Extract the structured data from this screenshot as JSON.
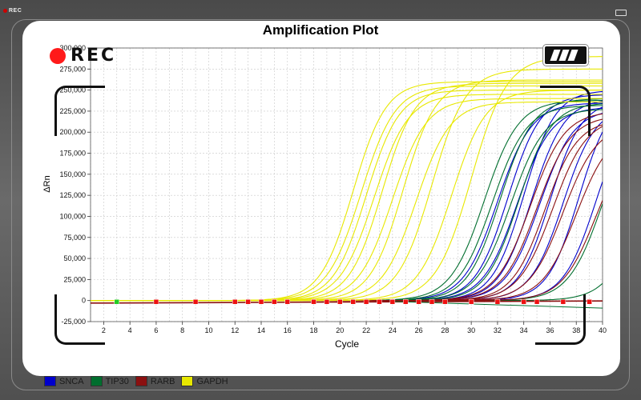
{
  "camera_overlay": {
    "rec_label": "REC",
    "corner_rec_label": "REC"
  },
  "chart_data": {
    "type": "line",
    "title": "Amplification Plot",
    "xlabel": "Cycle",
    "ylabel": "ΔRn",
    "xlim": [
      1,
      40
    ],
    "ylim": [
      -25000,
      300000
    ],
    "x_ticks": [
      2,
      4,
      6,
      8,
      10,
      12,
      14,
      16,
      18,
      20,
      22,
      24,
      26,
      28,
      30,
      32,
      34,
      36,
      38,
      40
    ],
    "y_ticks": [
      -25000,
      0,
      25000,
      50000,
      75000,
      100000,
      125000,
      150000,
      175000,
      200000,
      225000,
      250000,
      275000,
      300000
    ],
    "y_tick_labels": [
      "-25,000",
      "0",
      "25,000",
      "50,000",
      "75,000",
      "100,000",
      "125,000",
      "150,000",
      "175,000",
      "200,000",
      "225,000",
      "250,000",
      "275,000",
      "300,000"
    ],
    "grid": true,
    "legend_position": "bottom-left",
    "series": [
      {
        "name": "SNCA",
        "color": "#0000cc",
        "curves": [
          {
            "plateau": 235000,
            "midpoint": 32.0,
            "slope": 1.3
          },
          {
            "plateau": 245000,
            "midpoint": 32.8,
            "slope": 1.25
          },
          {
            "plateau": 230000,
            "midpoint": 33.5,
            "slope": 1.3
          },
          {
            "plateau": 250000,
            "midpoint": 34.0,
            "slope": 1.2
          },
          {
            "plateau": 240000,
            "midpoint": 34.6,
            "slope": 1.25
          },
          {
            "plateau": 228000,
            "midpoint": 35.2,
            "slope": 1.3
          },
          {
            "plateau": 238000,
            "midpoint": 36.0,
            "slope": 1.2
          },
          {
            "plateau": 232000,
            "midpoint": 37.0,
            "slope": 1.25
          },
          {
            "plateau": 245000,
            "midpoint": 38.2,
            "slope": 1.2
          },
          {
            "plateau": 236000,
            "midpoint": 39.5,
            "slope": 1.25
          }
        ]
      },
      {
        "name": "TIP30",
        "color": "#006e2e",
        "curves": [
          {
            "plateau": 238000,
            "midpoint": 31.0,
            "slope": 1.3
          },
          {
            "plateau": 232000,
            "midpoint": 31.6,
            "slope": 1.3
          },
          {
            "plateau": 240000,
            "midpoint": 32.2,
            "slope": 1.25
          },
          {
            "plateau": 228000,
            "midpoint": 33.0,
            "slope": 1.3
          },
          {
            "plateau": 235000,
            "midpoint": 33.6,
            "slope": 1.25
          },
          {
            "plateau": 230000,
            "midpoint": 40.0,
            "slope": 1.3
          },
          {
            "plateau": 225000,
            "midpoint": 43.0,
            "slope": 1.3
          }
        ]
      },
      {
        "name": "RARB",
        "color": "#8b1010",
        "curves": [
          {
            "plateau": 225000,
            "midpoint": 34.5,
            "slope": 1.3
          },
          {
            "plateau": 220000,
            "midpoint": 35.0,
            "slope": 1.3
          },
          {
            "plateau": 215000,
            "midpoint": 35.6,
            "slope": 1.25
          },
          {
            "plateau": 218000,
            "midpoint": 36.2,
            "slope": 1.3
          },
          {
            "plateau": 210000,
            "midpoint": 37.0,
            "slope": 1.3
          },
          {
            "plateau": 205000,
            "midpoint": 38.0,
            "slope": 1.3
          },
          {
            "plateau": 200000,
            "midpoint": 39.5,
            "slope": 1.3
          }
        ]
      },
      {
        "name": "GAPDH",
        "color": "#e8e800",
        "curves": [
          {
            "plateau": 260000,
            "midpoint": 21.0,
            "slope": 1.25
          },
          {
            "plateau": 255000,
            "midpoint": 21.6,
            "slope": 1.3
          },
          {
            "plateau": 250000,
            "midpoint": 22.0,
            "slope": 1.25
          },
          {
            "plateau": 245000,
            "midpoint": 22.6,
            "slope": 1.3
          },
          {
            "plateau": 258000,
            "midpoint": 23.2,
            "slope": 1.25
          },
          {
            "plateau": 240000,
            "midpoint": 24.0,
            "slope": 1.3
          },
          {
            "plateau": 262000,
            "midpoint": 24.8,
            "slope": 1.25
          },
          {
            "plateau": 236000,
            "midpoint": 25.8,
            "slope": 1.3
          },
          {
            "plateau": 275000,
            "midpoint": 27.0,
            "slope": 1.3
          },
          {
            "plateau": 250000,
            "midpoint": 28.5,
            "slope": 1.3
          },
          {
            "plateau": 290000,
            "midpoint": 30.0,
            "slope": 1.35
          }
        ]
      }
    ],
    "baseline_markers": [
      3,
      6,
      9,
      12,
      13,
      14,
      15,
      16,
      18,
      19,
      20,
      21,
      22,
      23,
      24,
      25,
      26,
      27,
      28,
      30,
      32,
      34,
      35,
      37,
      39
    ]
  },
  "colors": {
    "grid": "#c8c8c8",
    "marker_red": "#ee1111",
    "marker_green": "#22cc22"
  }
}
